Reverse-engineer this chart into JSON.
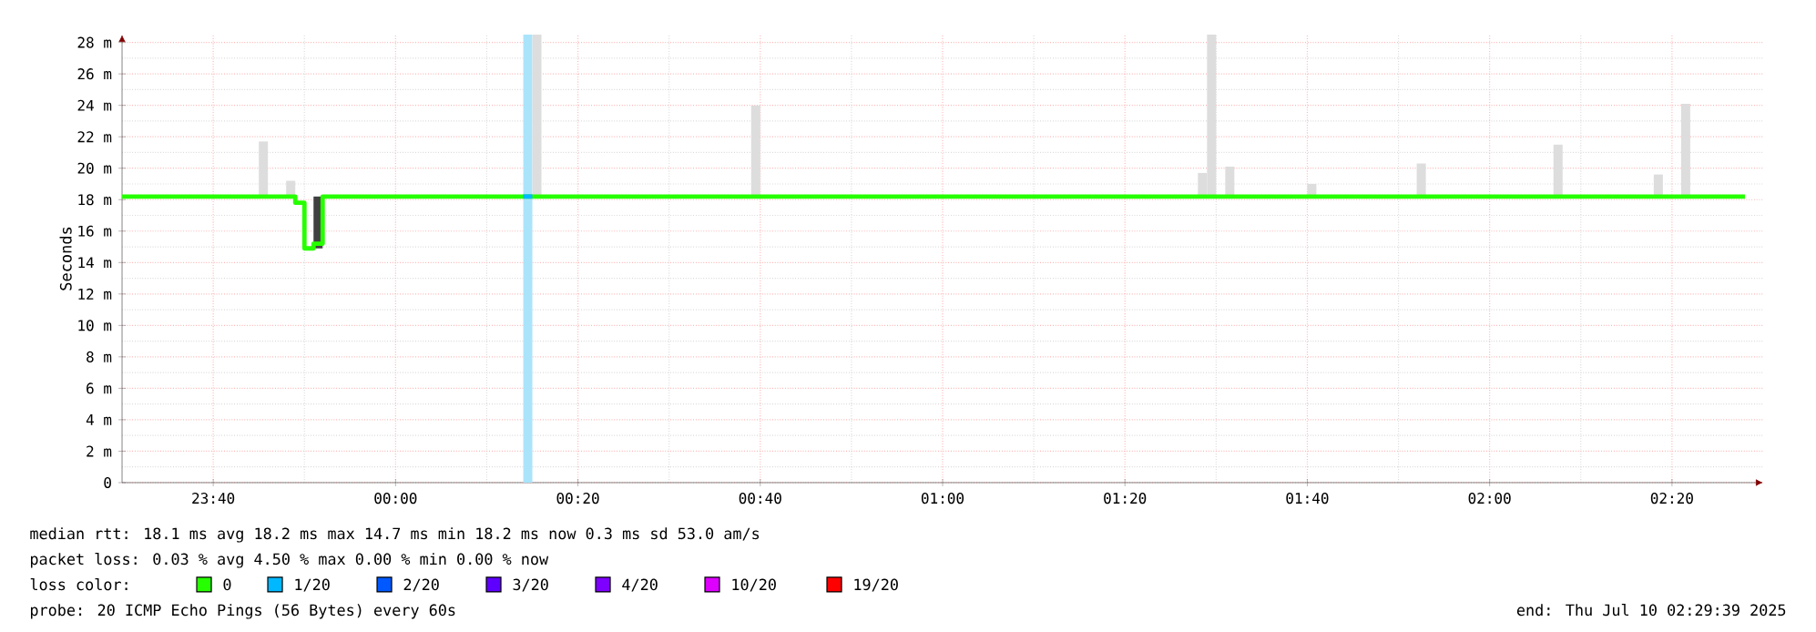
{
  "chart_data": {
    "type": "line",
    "ylabel": "Seconds",
    "xlim": [
      "2025-07-09T23:30",
      "2025-07-10T02:30"
    ],
    "xticks": [
      {
        "value": "2025-07-09T23:40",
        "label": "23:40"
      },
      {
        "value": "2025-07-10T00:00",
        "label": "00:00"
      },
      {
        "value": "2025-07-10T00:20",
        "label": "00:20"
      },
      {
        "value": "2025-07-10T00:40",
        "label": "00:40"
      },
      {
        "value": "2025-07-10T01:00",
        "label": "01:00"
      },
      {
        "value": "2025-07-10T01:20",
        "label": "01:20"
      },
      {
        "value": "2025-07-10T01:40",
        "label": "01:40"
      },
      {
        "value": "2025-07-10T02:00",
        "label": "02:00"
      },
      {
        "value": "2025-07-10T02:20",
        "label": "02:20"
      }
    ],
    "ylim": [
      0,
      28.5
    ],
    "yticks": [
      0,
      {
        "value": 2,
        "label": "2 m"
      },
      {
        "value": 4,
        "label": "4 m"
      },
      {
        "value": 6,
        "label": "6 m"
      },
      {
        "value": 8,
        "label": "8 m"
      },
      {
        "value": 10,
        "label": "10 m"
      },
      {
        "value": 12,
        "label": "12 m"
      },
      {
        "value": 14,
        "label": "14 m"
      },
      {
        "value": 16,
        "label": "16 m"
      },
      {
        "value": 18,
        "label": "18 m"
      },
      {
        "value": 20,
        "label": "20 m"
      },
      {
        "value": 22,
        "label": "22 m"
      },
      {
        "value": 24,
        "label": "24 m"
      },
      {
        "value": 26,
        "label": "26 m"
      },
      {
        "value": 28,
        "label": "28 m"
      }
    ],
    "grid": true,
    "bands": [
      {
        "axis": "x",
        "from": "2025-07-10T00:14",
        "to": "2025-07-10T00:15",
        "color": "#aae4fb"
      }
    ],
    "series": [
      {
        "type": "bar",
        "base": [
          18.2,
          18.2,
          14.9,
          18.2,
          18.2,
          18.2,
          18.2,
          18.2,
          18.2,
          18.2,
          18.2,
          18.2,
          18.2
        ],
        "x": [
          "2025-07-09T23:45",
          "2025-07-09T23:48",
          "2025-07-09T23:51",
          "2025-07-10T00:15",
          "2025-07-10T00:39",
          "2025-07-10T01:28",
          "2025-07-10T01:29",
          "2025-07-10T01:31",
          "2025-07-10T01:40",
          "2025-07-10T01:52",
          "2025-07-10T02:07",
          "2025-07-10T02:18",
          "2025-07-10T02:21"
        ],
        "values": [
          3.5,
          1.0,
          3.3,
          10.3,
          5.8,
          1.5,
          10.3,
          1.9,
          0.8,
          2.1,
          3.3,
          1.4,
          5.9
        ],
        "colors": [
          "#dddddd",
          "#dddddd",
          "#404040",
          "#dddddd",
          "#dddddd",
          "#dddddd",
          "#dddddd",
          "#dddddd",
          "#dddddd",
          "#dddddd",
          "#dddddd",
          "#dddddd",
          "#dddddd"
        ]
      },
      {
        "name": "0",
        "color": "#26ff00",
        "x": [
          "2025-07-09T23:30",
          "2025-07-09T23:49",
          "2025-07-09T23:49",
          "2025-07-09T23:50",
          "2025-07-09T23:50",
          "2025-07-09T23:51",
          "2025-07-09T23:51",
          "2025-07-09T23:52",
          "2025-07-09T23:52",
          "2025-07-10T02:28"
        ],
        "values": [
          18.2,
          18.2,
          17.8,
          17.8,
          14.9,
          14.9,
          15.2,
          15.2,
          18.2,
          18.2
        ]
      },
      {
        "name": "1/20",
        "color": "#00b8ff",
        "x": [
          "2025-07-10T00:14",
          "2025-07-10T00:15"
        ],
        "values": [
          18.2,
          18.2
        ]
      },
      {
        "name": "2/20",
        "color": "#0059ff"
      },
      {
        "name": "3/20",
        "color": "#5e00ff"
      },
      {
        "name": "4/20",
        "color": "#7e00ff"
      },
      {
        "name": "10/20",
        "color": "#dd00ff"
      },
      {
        "name": "19/20",
        "color": "#ff0000"
      }
    ],
    "legend": "bottom",
    "legend_title": "loss color:",
    "annotations": [
      "median rtt:  18.1 ms avg  18.2 ms max  14.7 ms min  18.2 ms now  0.3 ms sd  53.0   am/s",
      "packet loss: 0.03 % avg  4.50 % max  0.00 % min  0.00 % now",
      "probe:       20 ICMP Echo Pings (56 Bytes) every 60s",
      "end: Thu Jul 10 02:29:39 2025"
    ]
  }
}
